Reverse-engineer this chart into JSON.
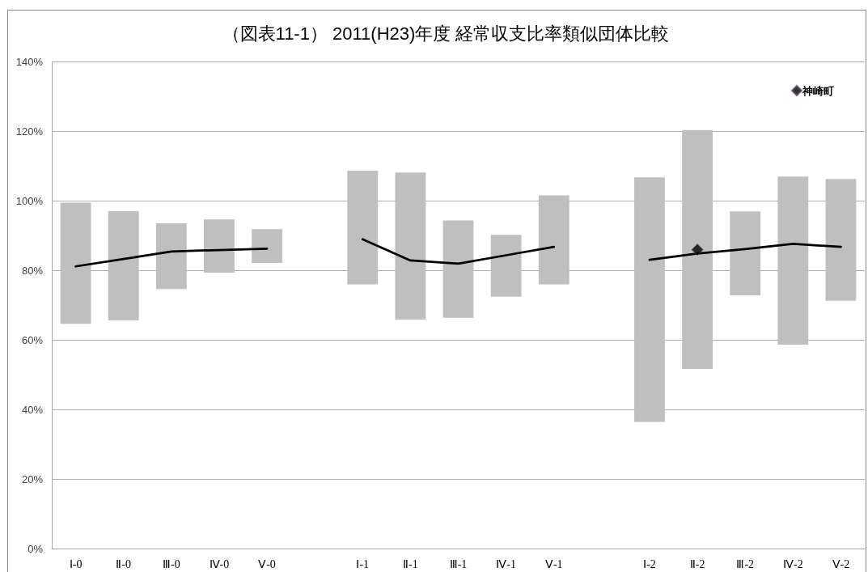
{
  "chart_data": {
    "type": "bar",
    "title": "（図表11-1） 2011(H23)年度 経常収支比率類似団体比較",
    "categories": [
      "Ⅰ-0",
      "Ⅱ-0",
      "Ⅲ-0",
      "Ⅳ-0",
      "Ⅴ-0",
      null,
      "Ⅰ-1",
      "Ⅱ-1",
      "Ⅲ-1",
      "Ⅳ-1",
      "Ⅴ-1",
      null,
      "Ⅰ-2",
      "Ⅱ-2",
      "Ⅲ-2",
      "Ⅳ-2",
      "Ⅴ-2"
    ],
    "series": [
      {
        "color": "#bfbfbf",
        "base": [
          64.7,
          65.7,
          74.7,
          79.4,
          82.2,
          null,
          76.0,
          65.9,
          66.4,
          72.5,
          76.0,
          null,
          36.5,
          51.7,
          72.9,
          58.7,
          71.3
        ],
        "values": [
          34.8,
          31.4,
          18.9,
          15.3,
          9.7,
          null,
          32.7,
          42.3,
          28.0,
          17.8,
          25.6,
          null,
          70.3,
          68.7,
          24.1,
          48.3,
          35.0
        ]
      },
      {
        "type": "line",
        "color": "#000000",
        "marker": "none",
        "values": [
          81.2,
          83.3,
          85.5,
          85.9,
          86.3,
          null,
          89.0,
          82.9,
          82.0,
          84.4,
          86.8,
          null,
          83.1,
          84.9,
          86.2,
          87.7,
          86.8
        ]
      },
      {
        "type": "scatter",
        "name": "神崎町",
        "color": "#000000",
        "marker": "diamond",
        "x": [
          "Ⅱ-2"
        ],
        "values": [
          86.0
        ]
      }
    ],
    "ylim": [
      0,
      140
    ],
    "yticks": [
      {
        "value": 0,
        "label": "0%"
      },
      {
        "value": 20,
        "label": "20%"
      },
      {
        "value": 40,
        "label": "40%"
      },
      {
        "value": 60,
        "label": "60%"
      },
      {
        "value": 80,
        "label": "80%"
      },
      {
        "value": 100,
        "label": "100%"
      },
      {
        "value": 120,
        "label": "120%"
      },
      {
        "value": 140,
        "label": "140%"
      }
    ],
    "grid": "y",
    "legend": "top right"
  }
}
